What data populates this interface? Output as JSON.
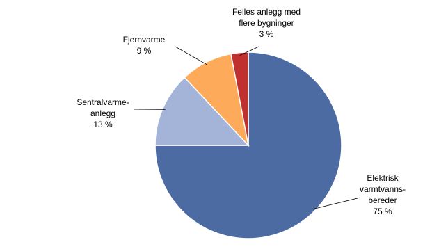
{
  "chart_data": {
    "type": "pie",
    "categories": [
      [
        "Elektrisk",
        "varmtvanns-",
        "bereder"
      ],
      [
        "Sentralvarme-",
        "anlegg"
      ],
      [
        "Fjernvarme"
      ],
      [
        "Felles anlegg med",
        "flere bygninger"
      ]
    ],
    "values": [
      75,
      13,
      9,
      3
    ],
    "value_labels": [
      "75 %",
      "13 %",
      "9 %",
      "3 %"
    ],
    "colors": [
      "#4d6ba3",
      "#a3b4d8",
      "#fdab5b",
      "#c0302f"
    ]
  }
}
